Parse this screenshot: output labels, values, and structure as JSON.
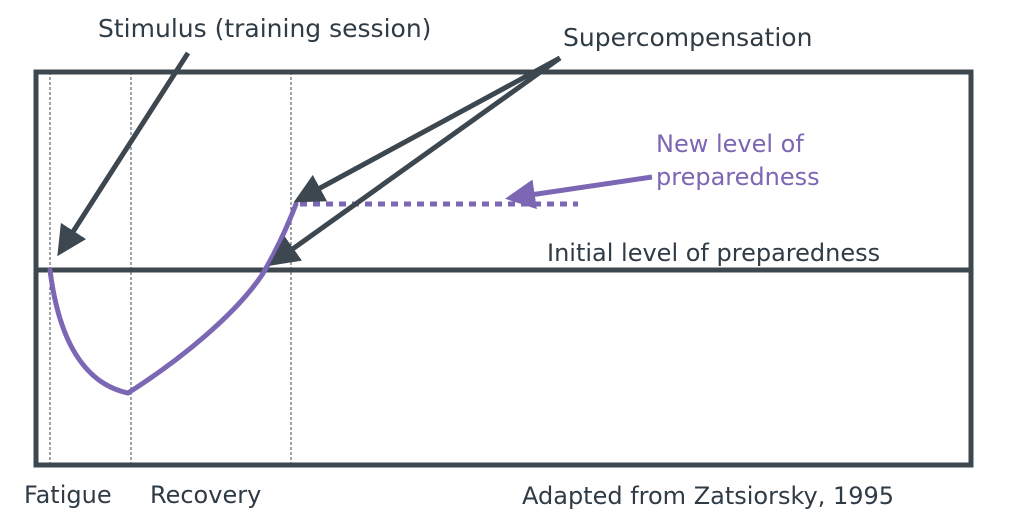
{
  "labels": {
    "stimulus": "Stimulus (training session)",
    "supercompensation": "Supercompensation",
    "new_level_line1": "New level of",
    "new_level_line2": "preparedness",
    "initial_level": "Initial level of preparedness",
    "fatigue": "Fatigue",
    "recovery": "Recovery",
    "source": "Adapted from Zatsiorsky, 1995"
  },
  "colors": {
    "frame": "#3d4750",
    "curve": "#7b67b3",
    "arrow": "#3d4750",
    "guide": "#3d4750"
  }
}
